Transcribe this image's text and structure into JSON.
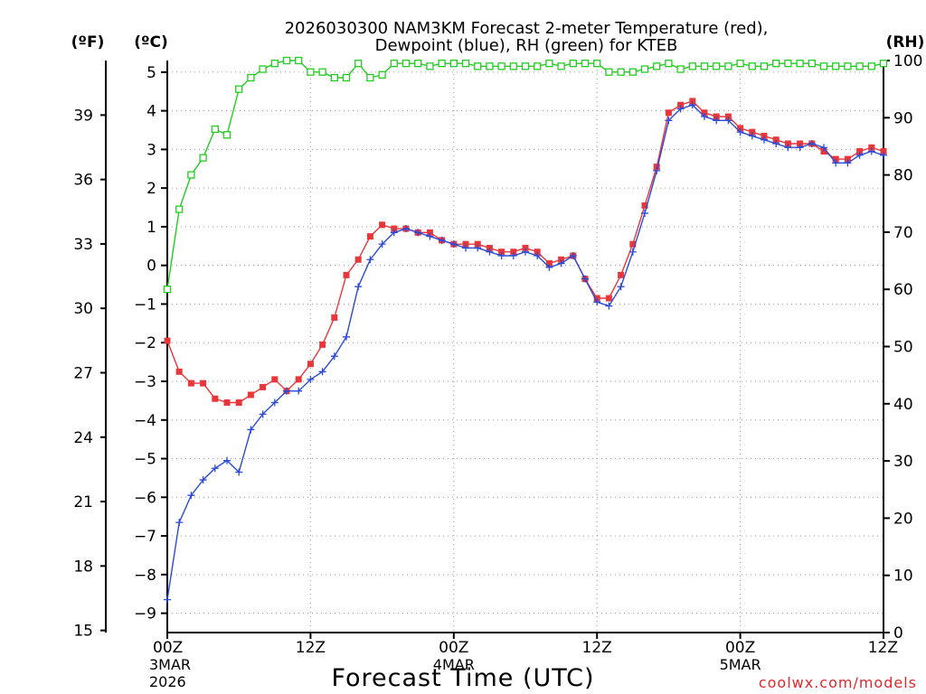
{
  "chart_data": {
    "type": "line",
    "title_line1": "2026030300 NAM3KM Forecast 2-meter Temperature (red),",
    "title_line2": "Dewpoint (blue), RH (green) for KTEB",
    "xlabel": "Forecast Time (UTC)",
    "credit": "coolwx.com/models",
    "unit_f": "(ºF)",
    "unit_c": "(ºC)",
    "unit_rh": "(RH)",
    "x_range_hours": [
      0,
      60
    ],
    "c_range": [
      -9.5,
      5.3
    ],
    "rh_range": [
      0,
      100
    ],
    "x_ticks": [
      {
        "hour": 0,
        "l1": "00Z",
        "l2": "3MAR",
        "l3": "2026"
      },
      {
        "hour": 12,
        "l1": "12Z",
        "l2": "",
        "l3": ""
      },
      {
        "hour": 24,
        "l1": "00Z",
        "l2": "4MAR",
        "l3": ""
      },
      {
        "hour": 36,
        "l1": "12Z",
        "l2": "",
        "l3": ""
      },
      {
        "hour": 48,
        "l1": "00Z",
        "l2": "5MAR",
        "l3": ""
      },
      {
        "hour": 60,
        "l1": "12Z",
        "l2": "",
        "l3": ""
      }
    ],
    "c_ticks": [
      -9,
      -8,
      -7,
      -6,
      -5,
      -4,
      -3,
      -2,
      -1,
      0,
      1,
      2,
      3,
      4,
      5
    ],
    "f_ticks": [
      15,
      18,
      21,
      24,
      27,
      30,
      33,
      36,
      39
    ],
    "rh_ticks": [
      0,
      10,
      20,
      30,
      40,
      50,
      60,
      70,
      80,
      90,
      100
    ],
    "hours": [
      0,
      1,
      2,
      3,
      4,
      5,
      6,
      7,
      8,
      9,
      10,
      11,
      12,
      13,
      14,
      15,
      16,
      17,
      18,
      19,
      20,
      21,
      22,
      23,
      24,
      25,
      26,
      27,
      28,
      29,
      30,
      31,
      32,
      33,
      34,
      35,
      36,
      37,
      38,
      39,
      40,
      41,
      42,
      43,
      44,
      45,
      46,
      47,
      48,
      49,
      50,
      51,
      52,
      53,
      54,
      55,
      56,
      57,
      58,
      59,
      60
    ],
    "series": [
      {
        "name": "Temperature",
        "color": "#e8373b",
        "marker": "filled-square",
        "axis": "c",
        "values": [
          -1.95,
          -2.75,
          -3.05,
          -3.05,
          -3.45,
          -3.55,
          -3.55,
          -3.35,
          -3.15,
          -2.95,
          -3.25,
          -2.95,
          -2.55,
          -2.05,
          -1.35,
          -0.25,
          0.15,
          0.75,
          1.05,
          0.95,
          0.95,
          0.85,
          0.85,
          0.65,
          0.55,
          0.55,
          0.55,
          0.45,
          0.35,
          0.35,
          0.45,
          0.35,
          0.05,
          0.15,
          0.25,
          -0.35,
          -0.85,
          -0.85,
          -0.25,
          0.55,
          1.55,
          2.55,
          3.95,
          4.15,
          4.25,
          3.95,
          3.85,
          3.85,
          3.55,
          3.45,
          3.35,
          3.25,
          3.15,
          3.15,
          3.15,
          2.95,
          2.75,
          2.75,
          2.95,
          3.05,
          2.95
        ]
      },
      {
        "name": "Dewpoint",
        "color": "#2b4bd6",
        "marker": "plus",
        "axis": "c",
        "values": [
          -8.65,
          -6.65,
          -5.95,
          -5.55,
          -5.25,
          -5.05,
          -5.35,
          -4.25,
          -3.85,
          -3.55,
          -3.25,
          -3.25,
          -2.95,
          -2.75,
          -2.35,
          -1.85,
          -0.55,
          0.15,
          0.55,
          0.85,
          0.95,
          0.85,
          0.75,
          0.65,
          0.55,
          0.45,
          0.45,
          0.35,
          0.25,
          0.25,
          0.35,
          0.25,
          -0.05,
          0.05,
          0.25,
          -0.35,
          -0.95,
          -1.05,
          -0.55,
          0.35,
          1.35,
          2.45,
          3.75,
          4.05,
          4.15,
          3.85,
          3.75,
          3.75,
          3.45,
          3.35,
          3.25,
          3.15,
          3.05,
          3.05,
          3.15,
          3.05,
          2.65,
          2.65,
          2.85,
          2.95,
          2.85
        ]
      },
      {
        "name": "RH",
        "color": "#22cc22",
        "marker": "open-square",
        "axis": "rh",
        "values": [
          60,
          74,
          80,
          83,
          88,
          87,
          95,
          97,
          98.5,
          99.5,
          100,
          100,
          98,
          98,
          97,
          97,
          99.5,
          97,
          97.5,
          99.5,
          99.5,
          99.5,
          99,
          99.5,
          99.5,
          99.5,
          99,
          99,
          99,
          99,
          99,
          99,
          99.5,
          99,
          99.5,
          99.5,
          99.5,
          98,
          98,
          98,
          98.5,
          99,
          99.5,
          98.5,
          99,
          99,
          99,
          99,
          99.5,
          99,
          99,
          99.5,
          99.5,
          99.5,
          99.5,
          99,
          99,
          99,
          99,
          99,
          99.5
        ]
      }
    ]
  }
}
